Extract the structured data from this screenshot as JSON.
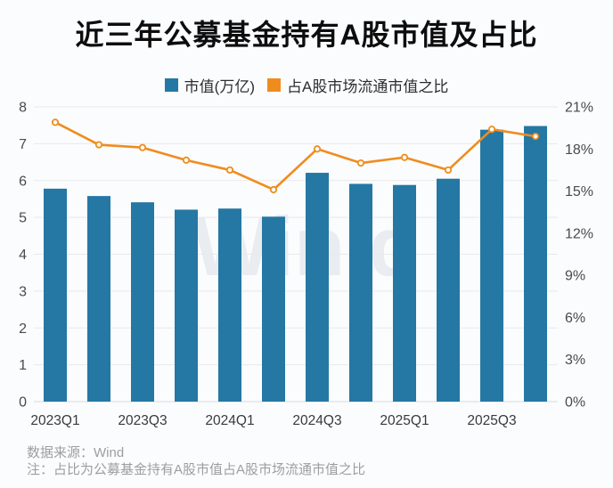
{
  "title": "近三年公募基金持有A股市值及占比",
  "legend": {
    "items": [
      {
        "label": "市值(万亿)",
        "color": "#2478a3"
      },
      {
        "label": "占A股市场流通市值之比",
        "color": "#f08c1e"
      }
    ]
  },
  "watermark": "Win.d",
  "footer": {
    "source": "数据来源：Wind",
    "note": "注：占比为公募基金持有A股市值占A股市场流通市值之比"
  },
  "colors": {
    "bar": "#2478a3",
    "line": "#f08c1e",
    "marker_fill": "#fffdf5",
    "grid": "#e9e9e9",
    "baseline": "#dadada",
    "axis_text": "#4a4a4a",
    "x_text": "#3a3a3a"
  },
  "chart_data": {
    "type": "bar",
    "subtype": "bar-line-combo",
    "title": "近三年公募基金持有A股市值及占比",
    "categories": [
      "2023Q1",
      "2023Q2",
      "2023Q3",
      "2023Q4",
      "2024Q1",
      "2024Q2",
      "2024Q3",
      "2024Q4",
      "2025Q1",
      "2025Q2",
      "2025Q3",
      "2025Q4"
    ],
    "x_axis_shown_ticks": [
      "2023Q1",
      "2023Q3",
      "2024Q1",
      "2024Q3",
      "2025Q1",
      "2025Q3"
    ],
    "series": [
      {
        "name": "市值(万亿)",
        "kind": "bar",
        "axis": "left",
        "color": "#2478a3",
        "values": [
          5.78,
          5.58,
          5.41,
          5.21,
          5.24,
          5.02,
          6.21,
          5.91,
          5.88,
          6.05,
          7.38,
          7.48
        ]
      },
      {
        "name": "占A股市场流通市值之比",
        "kind": "line",
        "axis": "right",
        "unit": "%",
        "color": "#f08c1e",
        "values": [
          19.9,
          18.3,
          18.1,
          17.2,
          16.5,
          15.1,
          18.0,
          17.0,
          17.4,
          16.5,
          19.4,
          18.9
        ]
      }
    ],
    "left_axis": {
      "min": 0,
      "max": 8,
      "step": 1,
      "ticks": [
        "0",
        "1",
        "2",
        "3",
        "4",
        "5",
        "6",
        "7",
        "8"
      ]
    },
    "right_axis": {
      "min": 0,
      "max": 21,
      "step": 3,
      "ticks": [
        "0%",
        "3%",
        "6%",
        "9%",
        "12%",
        "15%",
        "18%",
        "21%"
      ]
    },
    "grid": true,
    "legend_position": "top"
  }
}
